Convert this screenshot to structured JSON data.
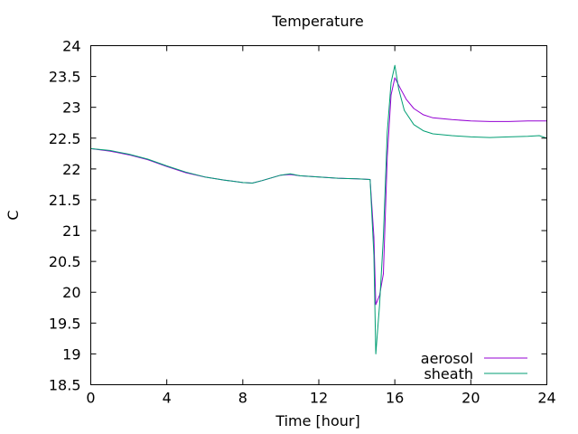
{
  "chart_data": {
    "type": "line",
    "title": "Temperature",
    "xlabel": "Time [hour]",
    "ylabel": "C",
    "xlim": [
      0,
      24
    ],
    "ylim": [
      18.5,
      24
    ],
    "xticks": [
      0,
      4,
      8,
      12,
      16,
      20,
      24
    ],
    "xtick_labels": [
      "0",
      "4",
      "8",
      "12",
      "16",
      "20",
      "24"
    ],
    "yticks": [
      18.5,
      19,
      19.5,
      20,
      20.5,
      21,
      21.5,
      22,
      22.5,
      23,
      23.5,
      24
    ],
    "ytick_labels": [
      "18.5",
      "19",
      "19.5",
      "20",
      "20.5",
      "21",
      "21.5",
      "22",
      "22.5",
      "23",
      "23.5",
      "24"
    ],
    "grid": false,
    "legend_position": "bottom-right",
    "series": [
      {
        "name": "aerosol",
        "color": "#9400d3",
        "x": [
          0,
          1,
          2,
          3,
          4,
          5,
          6,
          7,
          8,
          8.5,
          9,
          10,
          10.5,
          11,
          12,
          13,
          14,
          14.7,
          14.9,
          15.0,
          15.2,
          15.4,
          15.6,
          15.8,
          16.0,
          16.3,
          16.6,
          17,
          17.5,
          18,
          19,
          20,
          21,
          22,
          23,
          24
        ],
        "y": [
          22.33,
          22.29,
          22.23,
          22.15,
          22.04,
          21.94,
          21.87,
          21.82,
          21.78,
          21.77,
          21.81,
          21.9,
          21.91,
          21.89,
          21.87,
          21.85,
          21.84,
          21.83,
          20.9,
          19.8,
          19.95,
          20.3,
          22.2,
          23.2,
          23.48,
          23.3,
          23.13,
          22.98,
          22.88,
          22.83,
          22.8,
          22.78,
          22.77,
          22.77,
          22.78,
          22.78
        ]
      },
      {
        "name": "sheath",
        "color": "#009e73",
        "x": [
          0,
          1,
          2,
          3,
          4,
          5,
          6,
          7,
          8,
          8.5,
          9,
          10,
          10.5,
          11,
          12,
          13,
          14,
          14.7,
          14.9,
          15.0,
          15.2,
          15.4,
          15.6,
          15.8,
          16.0,
          16.2,
          16.5,
          17,
          17.5,
          18,
          19,
          20,
          21,
          22,
          23,
          23.6,
          24
        ],
        "y": [
          22.33,
          22.3,
          22.24,
          22.16,
          22.05,
          21.95,
          21.87,
          21.82,
          21.78,
          21.77,
          21.81,
          21.9,
          21.92,
          21.89,
          21.87,
          21.85,
          21.84,
          21.83,
          20.6,
          19.0,
          19.8,
          20.9,
          22.6,
          23.4,
          23.68,
          23.3,
          22.95,
          22.72,
          22.62,
          22.57,
          22.54,
          22.52,
          22.51,
          22.52,
          22.53,
          22.54,
          22.5
        ]
      }
    ]
  }
}
